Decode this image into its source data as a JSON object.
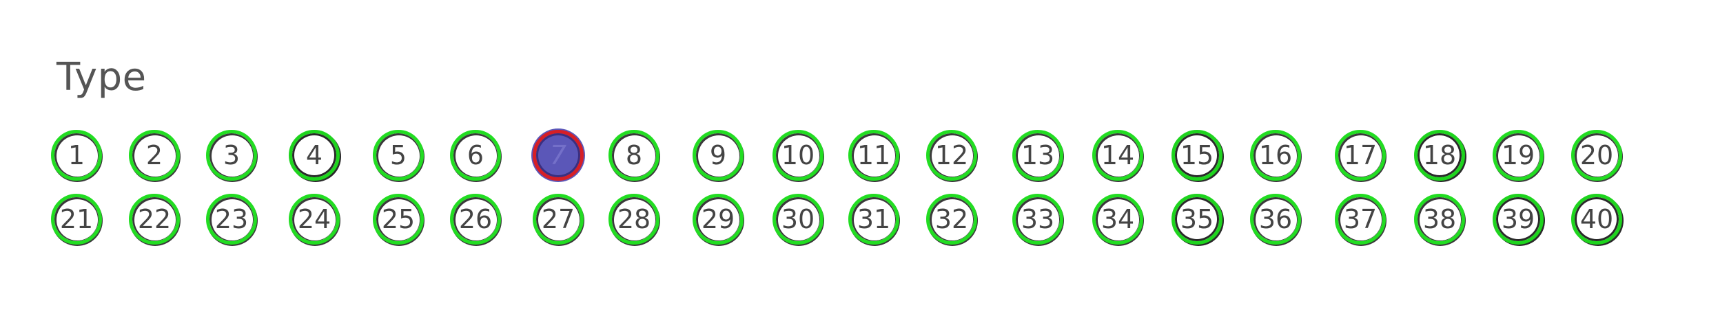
{
  "section": {
    "title": "Type"
  },
  "options": [
    {
      "label": "1"
    },
    {
      "label": "2"
    },
    {
      "label": "3"
    },
    {
      "label": "4"
    },
    {
      "label": "5"
    },
    {
      "label": "6"
    },
    {
      "label": "7",
      "selected": true
    },
    {
      "label": "8"
    },
    {
      "label": "9"
    },
    {
      "label": "10"
    },
    {
      "label": "11"
    },
    {
      "label": "12"
    },
    {
      "label": "13"
    },
    {
      "label": "14"
    },
    {
      "label": "15"
    },
    {
      "label": "16"
    },
    {
      "label": "17"
    },
    {
      "label": "18"
    },
    {
      "label": "19"
    },
    {
      "label": "20"
    },
    {
      "label": "21"
    },
    {
      "label": "22"
    },
    {
      "label": "23"
    },
    {
      "label": "24"
    },
    {
      "label": "25"
    },
    {
      "label": "26"
    },
    {
      "label": "27"
    },
    {
      "label": "28"
    },
    {
      "label": "29"
    },
    {
      "label": "30"
    },
    {
      "label": "31"
    },
    {
      "label": "32"
    },
    {
      "label": "33"
    },
    {
      "label": "34"
    },
    {
      "label": "35"
    },
    {
      "label": "36"
    },
    {
      "label": "37"
    },
    {
      "label": "38"
    },
    {
      "label": "39"
    },
    {
      "label": "40"
    }
  ],
  "colors": {
    "ring_unselected": "#22dd22",
    "ring_selected": "#d61f26",
    "fill_selected": "#5b57b8",
    "text": "#444444"
  }
}
